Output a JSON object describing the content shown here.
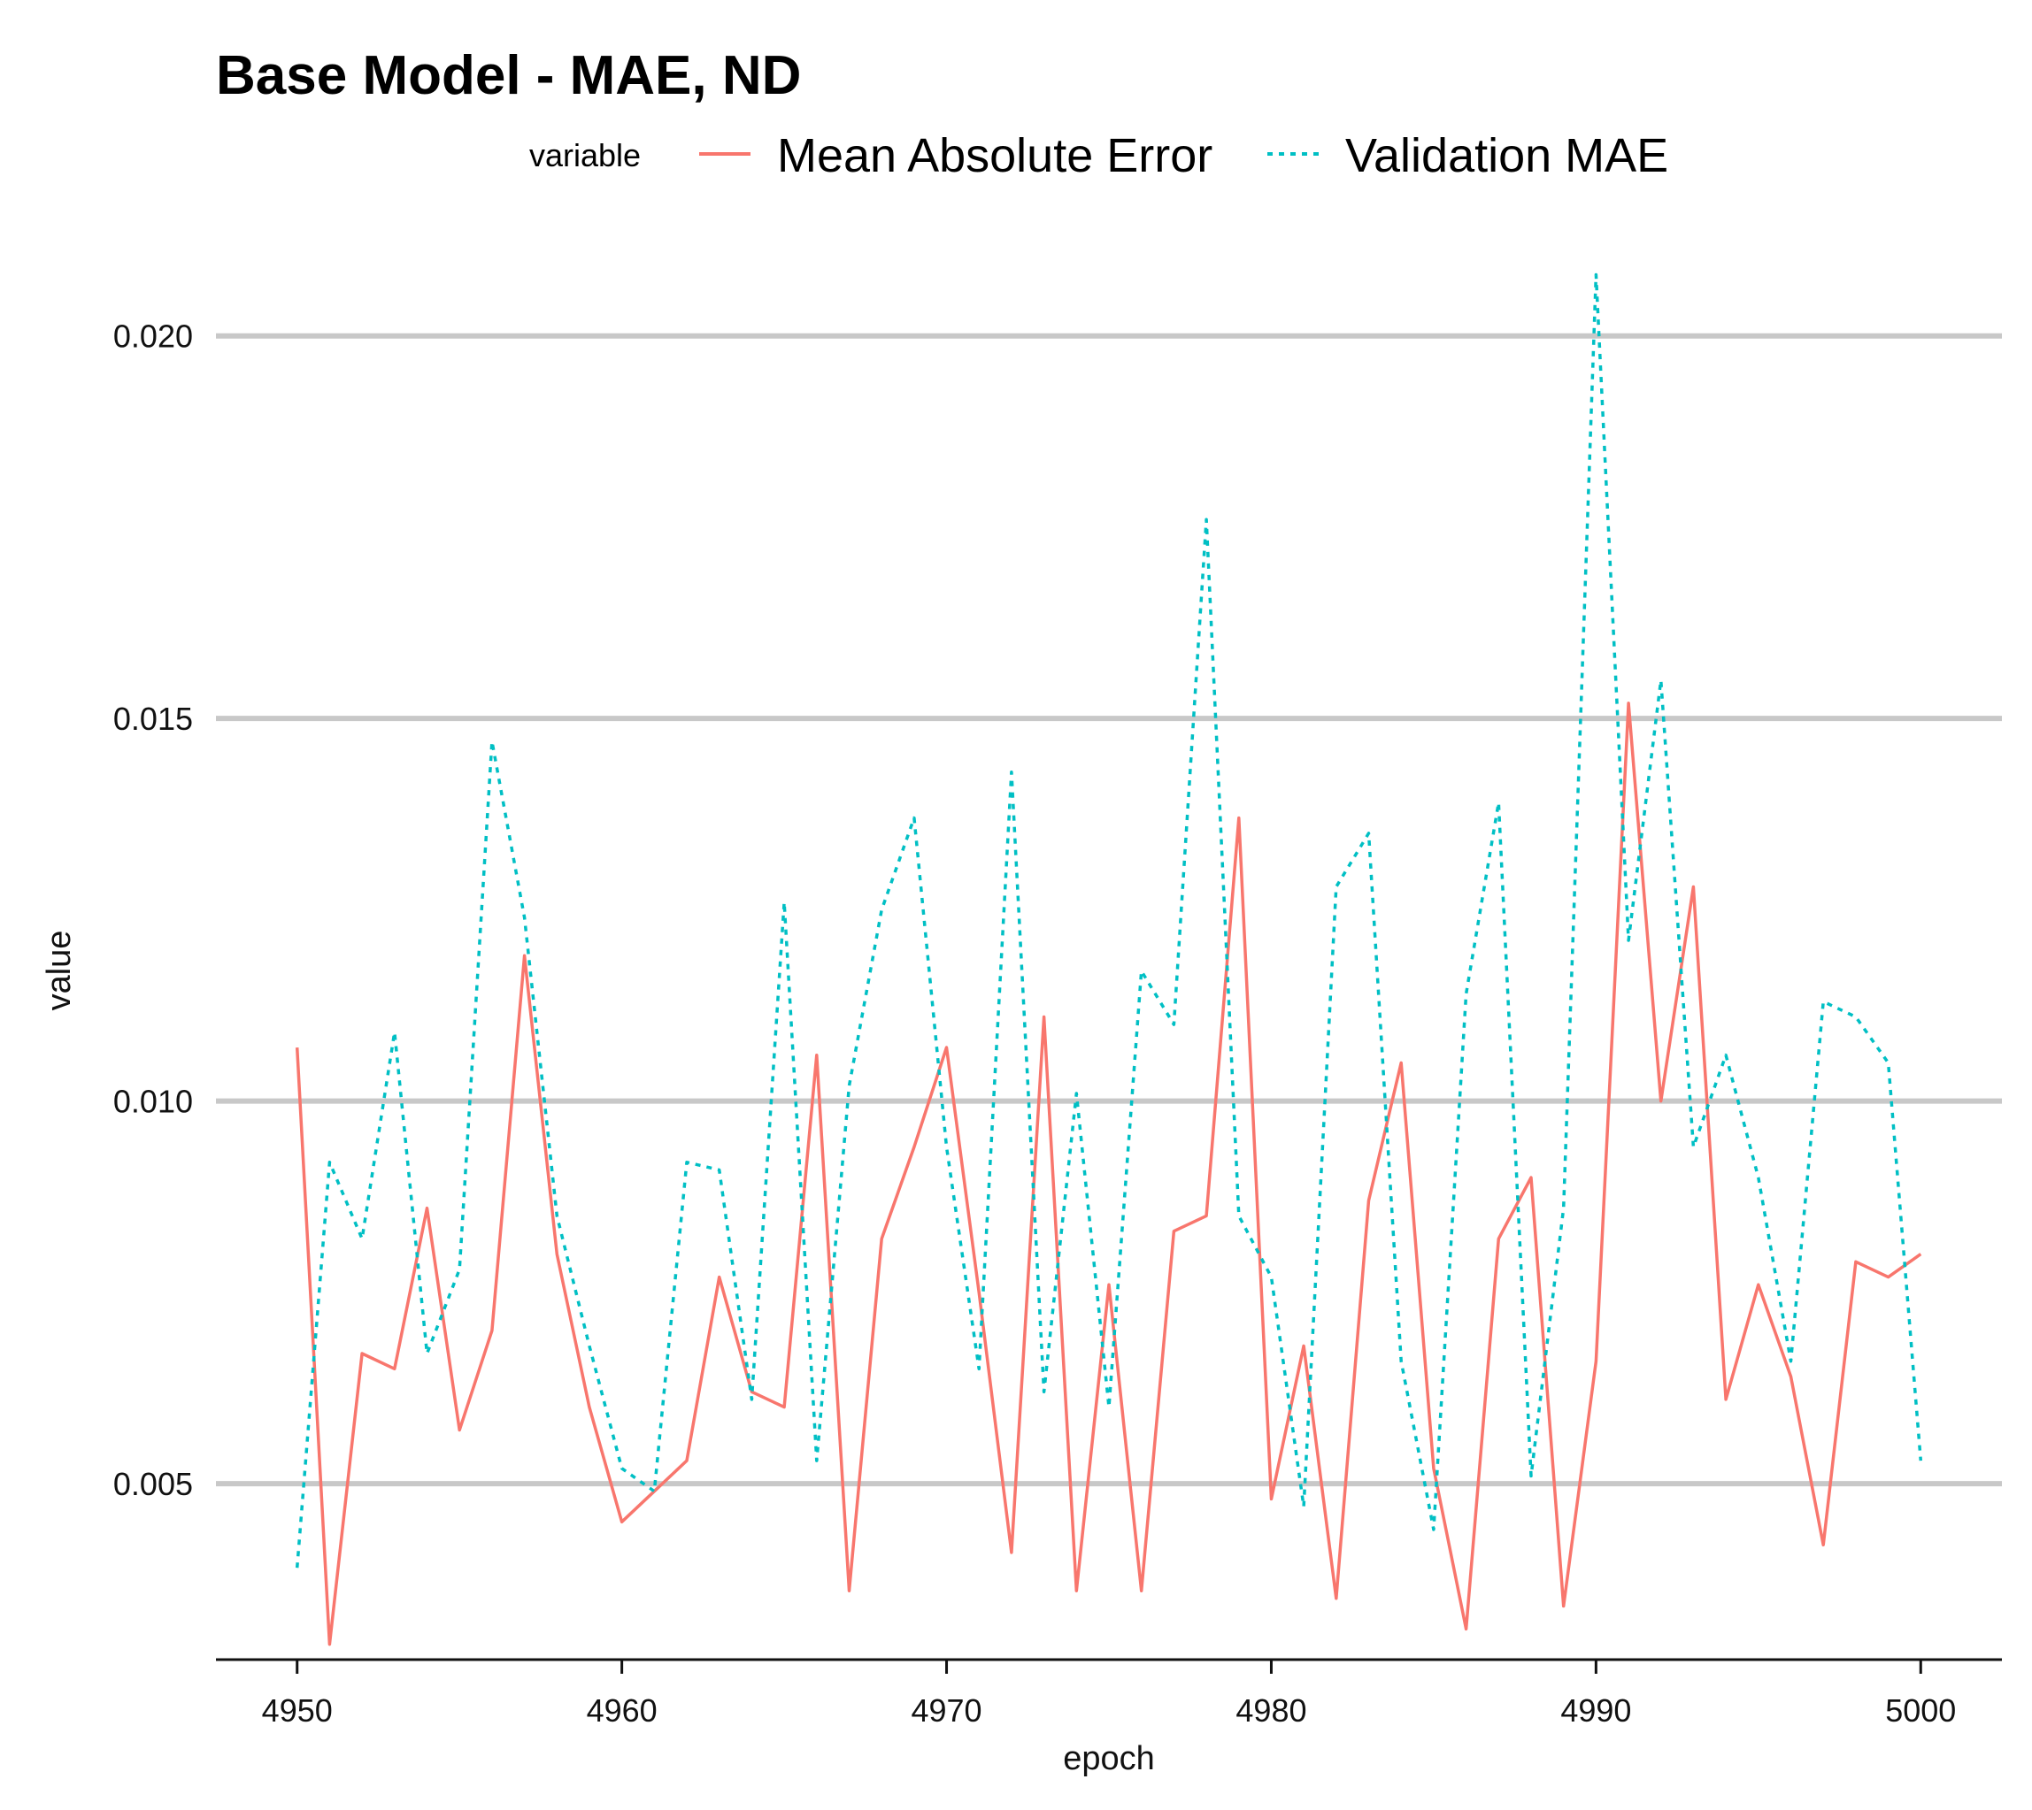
{
  "chart_data": {
    "type": "line",
    "title": "Base Model - MAE, ND",
    "xlabel": "epoch",
    "ylabel": "value",
    "xlim": [
      4947.5,
      5002.5
    ],
    "ylim": [
      0.0027,
      0.0215
    ],
    "x_ticks": [
      4950,
      4960,
      4970,
      4980,
      4990,
      5000
    ],
    "x_tick_labels": [
      "4950",
      "4960",
      "4970",
      "4980",
      "4990",
      "5000"
    ],
    "y_ticks": [
      0.005,
      0.01,
      0.015,
      0.02
    ],
    "y_tick_labels": [
      "0.005",
      "0.010",
      "0.015",
      "0.020"
    ],
    "grid": "horizontal-major",
    "legend": {
      "title": "variable",
      "position": "top"
    },
    "x": [
      4950,
      4951,
      4952,
      4953,
      4954,
      4955,
      4956,
      4957,
      4958,
      4959,
      4960,
      4961,
      4962,
      4963,
      4964,
      4965,
      4966,
      4967,
      4968,
      4969,
      4970,
      4971,
      4972,
      4973,
      4974,
      4975,
      4976,
      4977,
      4978,
      4979,
      4980,
      4981,
      4982,
      4983,
      4984,
      4985,
      4986,
      4987,
      4988,
      4989,
      4990,
      4991,
      4992,
      4993,
      4994,
      4995,
      4996,
      4997,
      4998,
      4999,
      5000
    ],
    "series": [
      {
        "name": "Mean Absolute Error",
        "color": "#f8766d",
        "dash": "solid",
        "values": [
          0.0107,
          0.0029,
          0.0067,
          0.0065,
          0.0086,
          0.0057,
          0.007,
          0.0119,
          0.008,
          0.006,
          0.0045,
          0.0049,
          0.0053,
          0.0077,
          0.0062,
          0.006,
          0.0106,
          0.0036,
          0.0082,
          0.0094,
          0.0107,
          0.0075,
          0.0041,
          0.0111,
          0.0036,
          0.0076,
          0.0036,
          0.0083,
          0.0085,
          0.0137,
          0.0048,
          0.0068,
          0.0035,
          0.0087,
          0.0105,
          0.0052,
          0.0031,
          0.0082,
          0.009,
          0.0034,
          0.0066,
          0.0152,
          0.01,
          0.0128,
          0.0061,
          0.0076,
          0.0064,
          0.0042,
          0.0079,
          0.0077,
          0.008
        ]
      },
      {
        "name": "Validation MAE",
        "color": "#00bfc4",
        "dash": "dotted",
        "values": [
          0.0039,
          0.0092,
          0.0082,
          0.0109,
          0.0067,
          0.0078,
          0.0147,
          0.0124,
          0.0085,
          0.0068,
          0.0052,
          0.0049,
          0.0092,
          0.0091,
          0.0061,
          0.0126,
          0.0053,
          0.0102,
          0.0125,
          0.0137,
          0.0094,
          0.0065,
          0.0143,
          0.0062,
          0.0101,
          0.006,
          0.0117,
          0.011,
          0.0176,
          0.0085,
          0.0077,
          0.0047,
          0.0128,
          0.0135,
          0.0066,
          0.0044,
          0.0114,
          0.0139,
          0.0051,
          0.0086,
          0.0208,
          0.0121,
          0.0155,
          0.0094,
          0.0106,
          0.009,
          0.0066,
          0.0113,
          0.0111,
          0.0105,
          0.0053
        ]
      }
    ]
  }
}
